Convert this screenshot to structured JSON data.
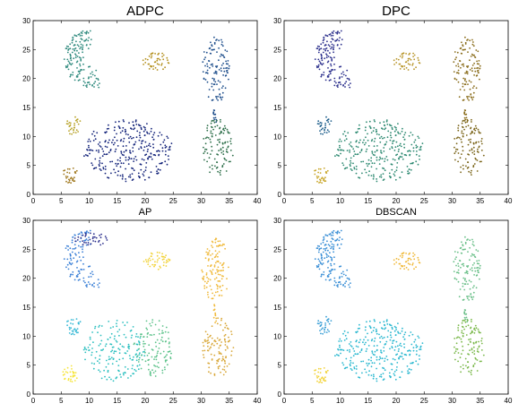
{
  "chart_data": [
    {
      "type": "scatter",
      "title": "ADPC",
      "xlim": [
        0,
        40
      ],
      "ylim": [
        0,
        30
      ],
      "xticks": [
        0,
        5,
        10,
        15,
        20,
        25,
        30,
        35,
        40
      ],
      "yticks": [
        0,
        5,
        10,
        15,
        20,
        25,
        30
      ],
      "grid": false,
      "series": [
        {
          "color": "#2f8a7e",
          "shape": "crescent",
          "cx": 9.5,
          "cy": 23.5,
          "rx": 5.2,
          "ry": 5.2,
          "n": 150
        },
        {
          "color": "#b38f1c",
          "shape": "blob",
          "cx": 22,
          "cy": 23,
          "rx": 2.5,
          "ry": 1.6,
          "n": 45
        },
        {
          "color": "#1f4f8c",
          "shape": "blob",
          "cx": 32.6,
          "cy": 21.5,
          "rx": 2.5,
          "ry": 5.7,
          "n": 120
        },
        {
          "color": "#1f4f8c",
          "shape": "stem",
          "x1": 32.2,
          "y1": 15.8,
          "x2": 32.6,
          "y2": 12.3,
          "n": 12
        },
        {
          "color": "#2e6f4a",
          "shape": "blob",
          "cx": 33,
          "cy": 8,
          "rx": 2.8,
          "ry": 5.2,
          "n": 110
        },
        {
          "color": "#b8a32a",
          "shape": "blob",
          "cx": 7.2,
          "cy": 11.8,
          "rx": 1.4,
          "ry": 1.6,
          "n": 30
        },
        {
          "color": "#a0781e",
          "shape": "blob",
          "cx": 6.6,
          "cy": 3.4,
          "rx": 1.4,
          "ry": 1.5,
          "n": 30
        },
        {
          "color": "#13237a",
          "shape": "blob",
          "cx": 17,
          "cy": 7.5,
          "rx": 8.0,
          "ry": 5.4,
          "n": 300
        }
      ]
    },
    {
      "type": "scatter",
      "title": "DPC",
      "xlim": [
        0,
        40
      ],
      "ylim": [
        0,
        30
      ],
      "xticks": [
        0,
        5,
        10,
        15,
        20,
        25,
        30,
        35,
        40
      ],
      "yticks": [
        0,
        5,
        10,
        15,
        20,
        25,
        30
      ],
      "grid": false,
      "series": [
        {
          "color": "#2b2f8c",
          "shape": "crescent",
          "cx": 9.5,
          "cy": 23.5,
          "rx": 5.2,
          "ry": 5.2,
          "n": 150
        },
        {
          "color": "#b8952a",
          "shape": "blob",
          "cx": 22,
          "cy": 23,
          "rx": 2.5,
          "ry": 1.6,
          "n": 45
        },
        {
          "color": "#8a6d1c",
          "shape": "blob",
          "cx": 32.6,
          "cy": 21.5,
          "rx": 2.5,
          "ry": 5.7,
          "n": 120
        },
        {
          "color": "#8a6d1c",
          "shape": "stem",
          "x1": 32.2,
          "y1": 15.8,
          "x2": 32.6,
          "y2": 12.3,
          "n": 12
        },
        {
          "color": "#7a6418",
          "shape": "blob",
          "cx": 33,
          "cy": 8,
          "rx": 2.8,
          "ry": 5.2,
          "n": 110
        },
        {
          "color": "#1f5f8c",
          "shape": "blob",
          "cx": 7.2,
          "cy": 11.8,
          "rx": 1.4,
          "ry": 1.6,
          "n": 30
        },
        {
          "color": "#c9a62a",
          "shape": "blob",
          "cx": 6.6,
          "cy": 3.4,
          "rx": 1.4,
          "ry": 1.5,
          "n": 30
        },
        {
          "color": "#2e8a72",
          "shape": "blob",
          "cx": 17,
          "cy": 7.5,
          "rx": 8.0,
          "ry": 5.4,
          "n": 300
        }
      ]
    },
    {
      "type": "scatter",
      "title": "AP",
      "xlim": [
        0,
        40
      ],
      "ylim": [
        0,
        30
      ],
      "xticks": [
        0,
        5,
        10,
        15,
        20,
        25,
        30,
        35,
        40
      ],
      "yticks": [
        0,
        5,
        10,
        15,
        20,
        25,
        30
      ],
      "grid": false,
      "series": [
        {
          "color": "#3a7fd6",
          "shape": "crescent",
          "cx": 9.5,
          "cy": 23.5,
          "rx": 5.2,
          "ry": 5.2,
          "n": 110
        },
        {
          "color": "#2b2f8c",
          "shape": "blob",
          "cx": 10.5,
          "cy": 26.8,
          "rx": 3.2,
          "ry": 1.2,
          "n": 35
        },
        {
          "color": "#f2d33a",
          "shape": "blob",
          "cx": 22,
          "cy": 23,
          "rx": 2.5,
          "ry": 1.6,
          "n": 45
        },
        {
          "color": "#f0b93a",
          "shape": "blob",
          "cx": 32.6,
          "cy": 21.5,
          "rx": 2.5,
          "ry": 5.7,
          "n": 120
        },
        {
          "color": "#f0b93a",
          "shape": "stem",
          "x1": 32.2,
          "y1": 15.8,
          "x2": 32.6,
          "y2": 12.3,
          "n": 12
        },
        {
          "color": "#d9a83a",
          "shape": "blob",
          "cx": 33,
          "cy": 8,
          "rx": 2.8,
          "ry": 5.2,
          "n": 110
        },
        {
          "color": "#3bbad6",
          "shape": "blob",
          "cx": 7.2,
          "cy": 11.8,
          "rx": 1.4,
          "ry": 1.6,
          "n": 30
        },
        {
          "color": "#f6e53a",
          "shape": "blob",
          "cx": 6.6,
          "cy": 3.4,
          "rx": 1.4,
          "ry": 1.5,
          "n": 30
        },
        {
          "color": "#2ec0c0",
          "shape": "blob",
          "cx": 14.5,
          "cy": 7.5,
          "rx": 5.5,
          "ry": 5.4,
          "n": 170
        },
        {
          "color": "#5cc28a",
          "shape": "blob",
          "cx": 21.5,
          "cy": 8,
          "rx": 3.6,
          "ry": 5.0,
          "n": 110
        }
      ]
    },
    {
      "type": "scatter",
      "title": "DBSCAN",
      "xlim": [
        0,
        40
      ],
      "ylim": [
        0,
        30
      ],
      "xticks": [
        0,
        5,
        10,
        15,
        20,
        25,
        30,
        35,
        40
      ],
      "yticks": [
        0,
        5,
        10,
        15,
        20,
        25,
        30
      ],
      "grid": false,
      "series": [
        {
          "color": "#3a8fd6",
          "shape": "crescent",
          "cx": 9.5,
          "cy": 23.5,
          "rx": 5.2,
          "ry": 5.2,
          "n": 150
        },
        {
          "color": "#f0b93a",
          "shape": "blob",
          "cx": 22,
          "cy": 23,
          "rx": 2.5,
          "ry": 1.6,
          "n": 45
        },
        {
          "color": "#6cc08a",
          "shape": "blob",
          "cx": 32.6,
          "cy": 21.5,
          "rx": 2.5,
          "ry": 5.7,
          "n": 120
        },
        {
          "color": "#6cc08a",
          "shape": "stem",
          "x1": 32.2,
          "y1": 15.8,
          "x2": 32.6,
          "y2": 12.3,
          "n": 12
        },
        {
          "color": "#7ab84a",
          "shape": "blob",
          "cx": 33,
          "cy": 8,
          "rx": 2.8,
          "ry": 5.2,
          "n": 110
        },
        {
          "color": "#3a9fd6",
          "shape": "blob",
          "cx": 7.2,
          "cy": 11.8,
          "rx": 1.4,
          "ry": 1.6,
          "n": 30
        },
        {
          "color": "#f2d33a",
          "shape": "blob",
          "cx": 6.6,
          "cy": 3.4,
          "rx": 1.4,
          "ry": 1.5,
          "n": 30
        },
        {
          "color": "#2bb8d0",
          "shape": "blob",
          "cx": 17,
          "cy": 7.5,
          "rx": 8.0,
          "ry": 5.4,
          "n": 300
        }
      ]
    }
  ]
}
